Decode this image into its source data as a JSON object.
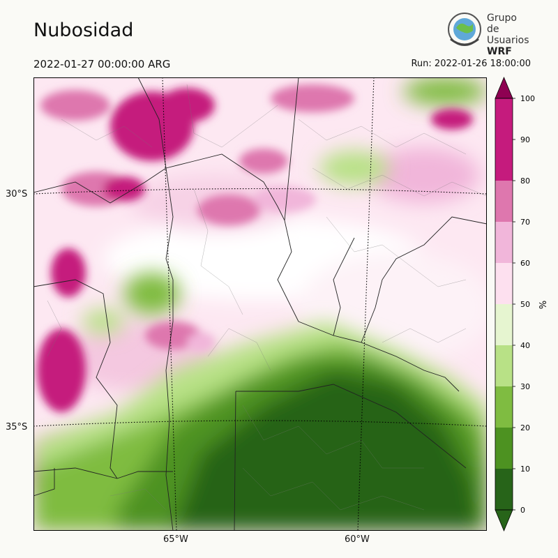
{
  "header": {
    "title": "Nubosidad",
    "valid_time": "2022-01-27 00:00:00 ARG",
    "run_time": "Run: 2022-01-26 18:00:00"
  },
  "logo": {
    "line1": "Grupo de",
    "line2": "Usuarios",
    "line3": "WRF"
  },
  "map": {
    "variable": "cloud cover",
    "units": "%",
    "lat_labels": [
      "30°S",
      "35°S"
    ],
    "lon_labels": [
      "65°W",
      "60°W"
    ]
  },
  "colorbar": {
    "label": "%",
    "ticks": [
      "0",
      "10",
      "20",
      "30",
      "40",
      "50",
      "60",
      "70",
      "80",
      "90",
      "100"
    ],
    "colors": [
      "#276419",
      "#4d9221",
      "#7fbc41",
      "#b8e186",
      "#e6f5d0",
      "#ffffff",
      "#fde0ef",
      "#f1b6da",
      "#de77ae",
      "#c51b7d",
      "#8e0152"
    ],
    "under_color": "#276419",
    "over_color": "#8e0152"
  }
}
